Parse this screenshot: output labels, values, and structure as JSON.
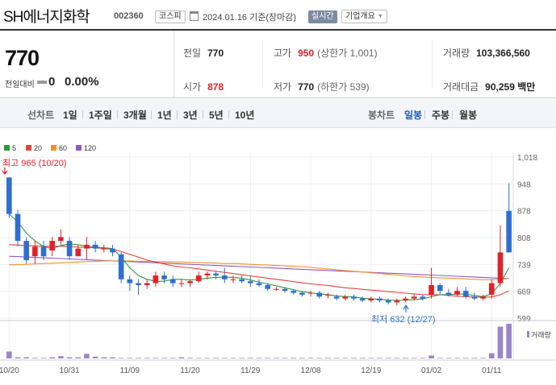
{
  "header": {
    "name": "SH에너지화학",
    "code": "002360",
    "market": "코스피",
    "date": "2024.01.16 기준(장마감)",
    "status": "실시간",
    "company_info": "기업개요"
  },
  "summary": {
    "price": "770",
    "change_label": "전일대비",
    "change_value": "0",
    "change_pct": "0.00%",
    "prev_label": "전일",
    "prev_value": "770",
    "open_label": "시가",
    "open_value": "878",
    "high_label": "고가",
    "high_value": "950",
    "high_sub": "(상한가 1,001)",
    "low_label": "저가",
    "low_value": "770",
    "low_sub": "(하한가 539)",
    "volume_label": "거래량",
    "volume_value": "103,366,560",
    "amount_label": "거래대금",
    "amount_value": "90,259 백만"
  },
  "tabs": {
    "line_chart": "선차트",
    "periods": [
      "1일",
      "1주일",
      "3개월",
      "1년",
      "3년",
      "5년",
      "10년"
    ],
    "candle_chart": "봉차트",
    "candle_periods": [
      "일봉",
      "주봉",
      "월봉"
    ],
    "active_candle": "일봉"
  },
  "legend": [
    {
      "label": "5",
      "color": "#2e9a3a"
    },
    {
      "label": "20",
      "color": "#e0453a"
    },
    {
      "label": "60",
      "color": "#f0932b"
    },
    {
      "label": "120",
      "color": "#8b5bbf"
    }
  ],
  "chart_data": {
    "type": "candlestick",
    "y_ticks": [
      "1,018",
      "948",
      "878",
      "808",
      "739",
      "669",
      "599"
    ],
    "ylim": [
      599,
      1018
    ],
    "x_labels": [
      "10/20",
      "10/31",
      "11/09",
      "11/20",
      "11/29",
      "12/08",
      "12/19",
      "01/02",
      "01/11"
    ],
    "x_label_index": [
      0,
      7,
      14,
      21,
      28,
      35,
      42,
      49,
      56
    ],
    "high_annotation": "최고 965 (10/20)",
    "low_annotation": "최저 632 (12/27)",
    "volume_label": "거래량",
    "up_color": "#e0222b",
    "down_color": "#2f6fd1",
    "candles": [
      [
        965,
        965,
        860,
        870
      ],
      [
        870,
        880,
        785,
        800
      ],
      [
        800,
        810,
        740,
        750
      ],
      [
        760,
        800,
        740,
        785
      ],
      [
        785,
        800,
        750,
        760
      ],
      [
        775,
        810,
        760,
        800
      ],
      [
        800,
        830,
        790,
        810
      ],
      [
        800,
        810,
        750,
        760
      ],
      [
        760,
        790,
        760,
        780
      ],
      [
        780,
        810,
        750,
        790
      ],
      [
        790,
        800,
        770,
        780
      ],
      [
        780,
        790,
        770,
        780
      ],
      [
        780,
        790,
        760,
        770
      ],
      [
        765,
        770,
        690,
        700
      ],
      [
        700,
        710,
        670,
        690
      ],
      [
        690,
        700,
        660,
        685
      ],
      [
        685,
        700,
        675,
        690
      ],
      [
        690,
        720,
        680,
        710
      ],
      [
        710,
        720,
        690,
        700
      ],
      [
        700,
        710,
        680,
        690
      ],
      [
        690,
        700,
        680,
        690
      ],
      [
        690,
        700,
        680,
        695
      ],
      [
        695,
        720,
        690,
        710
      ],
      [
        710,
        720,
        700,
        715
      ],
      [
        715,
        720,
        700,
        710
      ],
      [
        710,
        730,
        690,
        700
      ],
      [
        700,
        710,
        690,
        700
      ],
      [
        700,
        710,
        690,
        695
      ],
      [
        695,
        710,
        680,
        690
      ],
      [
        690,
        700,
        680,
        685
      ],
      [
        685,
        690,
        670,
        675
      ],
      [
        675,
        680,
        670,
        675
      ],
      [
        675,
        680,
        665,
        670
      ],
      [
        670,
        675,
        660,
        665
      ],
      [
        665,
        670,
        655,
        660
      ],
      [
        665,
        670,
        655,
        665
      ],
      [
        665,
        670,
        650,
        655
      ],
      [
        660,
        665,
        650,
        660
      ],
      [
        655,
        660,
        645,
        650
      ],
      [
        650,
        660,
        645,
        655
      ],
      [
        655,
        660,
        645,
        650
      ],
      [
        650,
        655,
        640,
        645
      ],
      [
        645,
        655,
        640,
        650
      ],
      [
        650,
        655,
        640,
        645
      ],
      [
        645,
        650,
        635,
        640
      ],
      [
        640,
        650,
        632,
        645
      ],
      [
        645,
        655,
        640,
        650
      ],
      [
        650,
        660,
        645,
        655
      ],
      [
        655,
        660,
        645,
        650
      ],
      [
        660,
        730,
        650,
        685
      ],
      [
        685,
        690,
        660,
        670
      ],
      [
        665,
        675,
        655,
        660
      ],
      [
        660,
        680,
        655,
        670
      ],
      [
        670,
        680,
        650,
        655
      ],
      [
        655,
        665,
        645,
        650
      ],
      [
        650,
        660,
        645,
        655
      ],
      [
        660,
        700,
        650,
        690
      ],
      [
        690,
        840,
        680,
        770
      ],
      [
        878,
        950,
        770,
        770
      ]
    ],
    "volumes": [
      12,
      2,
      2,
      1,
      1,
      2,
      4,
      2,
      2,
      8,
      3,
      2,
      2,
      1,
      1,
      1,
      1,
      1,
      1,
      1,
      2,
      1,
      1,
      1,
      1,
      1,
      1,
      1,
      1,
      1,
      1,
      1,
      1,
      1,
      1,
      1,
      1,
      1,
      1,
      1,
      1,
      1,
      1,
      1,
      1,
      1,
      1,
      1,
      1,
      5,
      1,
      1,
      1,
      1,
      1,
      1,
      9,
      55,
      60
    ],
    "ma5": [
      870,
      850,
      820,
      800,
      785,
      780,
      788,
      792,
      790,
      786,
      784,
      782,
      780,
      758,
      730,
      710,
      700,
      695,
      695,
      700,
      700,
      698,
      700,
      703,
      705,
      706,
      705,
      703,
      698,
      693,
      688,
      683,
      678,
      673,
      668,
      665,
      662,
      660,
      657,
      655,
      654,
      651,
      649,
      648,
      646,
      645,
      646,
      647,
      649,
      655,
      660,
      660,
      662,
      661,
      658,
      655,
      662,
      690,
      730
    ],
    "ma20": [
      790,
      789,
      788,
      787,
      786,
      786,
      786,
      785,
      784,
      783,
      782,
      780,
      778,
      772,
      765,
      758,
      750,
      745,
      740,
      735,
      732,
      730,
      727,
      724,
      721,
      718,
      715,
      712,
      709,
      706,
      703,
      700,
      697,
      694,
      691,
      688,
      686,
      684,
      681,
      678,
      676,
      674,
      672,
      670,
      668,
      666,
      664,
      662,
      660,
      660,
      660,
      658,
      656,
      655,
      654,
      653,
      654,
      660,
      670
    ],
    "ma60": [
      738,
      738,
      739,
      740,
      741,
      742,
      743,
      744,
      745,
      746,
      747,
      748,
      748,
      748,
      748,
      747,
      747,
      746,
      746,
      745,
      745,
      744,
      744,
      743,
      742,
      741,
      741,
      740,
      739,
      738,
      737,
      736,
      735,
      734,
      733,
      731,
      729,
      727,
      725,
      723,
      721,
      719,
      717,
      715,
      713,
      711,
      709,
      707,
      706,
      705,
      704,
      703,
      702,
      701,
      700,
      699,
      699,
      700,
      702
    ],
    "ma120": [
      760,
      759,
      758,
      757,
      756,
      755,
      754,
      753,
      752,
      751,
      750,
      749,
      748,
      747,
      746,
      745,
      744,
      743,
      742,
      741,
      740,
      739,
      738,
      737,
      736,
      735,
      734,
      733,
      732,
      731,
      730,
      729,
      728,
      727,
      726,
      725,
      724,
      723,
      722,
      721,
      720,
      719,
      718,
      717,
      716,
      715,
      714,
      713,
      712,
      711,
      710,
      709,
      708,
      707,
      706,
      705,
      704,
      703,
      702
    ]
  }
}
